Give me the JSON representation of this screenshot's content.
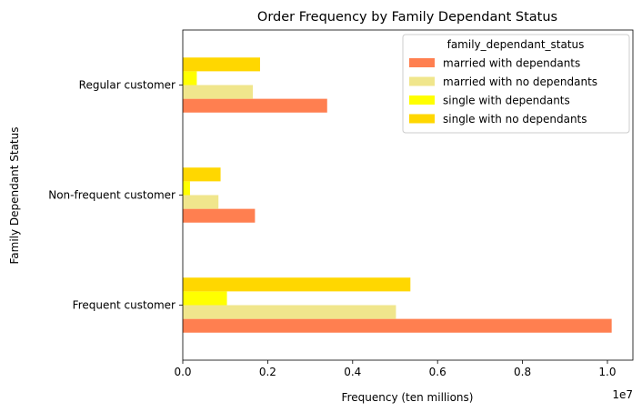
{
  "chart_data": {
    "type": "bar",
    "orientation": "horizontal",
    "title": "Order Frequency by Family Dependant Status",
    "xlabel": "Frequency (ten millions)",
    "ylabel": "Family Dependant Status",
    "x_offset_text": "1e7",
    "xlim": [
      0,
      10600000
    ],
    "x_ticks": [
      0,
      2000000,
      4000000,
      6000000,
      8000000,
      10000000
    ],
    "x_tick_labels": [
      "0.0",
      "0.2",
      "0.4",
      "0.6",
      "0.8",
      "1.0"
    ],
    "categories": [
      "Frequent customer",
      "Non-frequent customer",
      "Regular customer"
    ],
    "legend_title": "family_dependant_status",
    "legend_position": "top-right",
    "grid": false,
    "series": [
      {
        "name": "married with dependants",
        "color": "#ff7f50",
        "values": [
          10100000,
          1700000,
          3400000
        ]
      },
      {
        "name": "married with no dependants",
        "color": "#f0e68c",
        "values": [
          5020000,
          840000,
          1650000
        ]
      },
      {
        "name": "single with dependants",
        "color": "#ffff00",
        "values": [
          1040000,
          170000,
          330000
        ]
      },
      {
        "name": "single with no dependants",
        "color": "#ffd700",
        "values": [
          5360000,
          890000,
          1820000
        ]
      }
    ]
  }
}
